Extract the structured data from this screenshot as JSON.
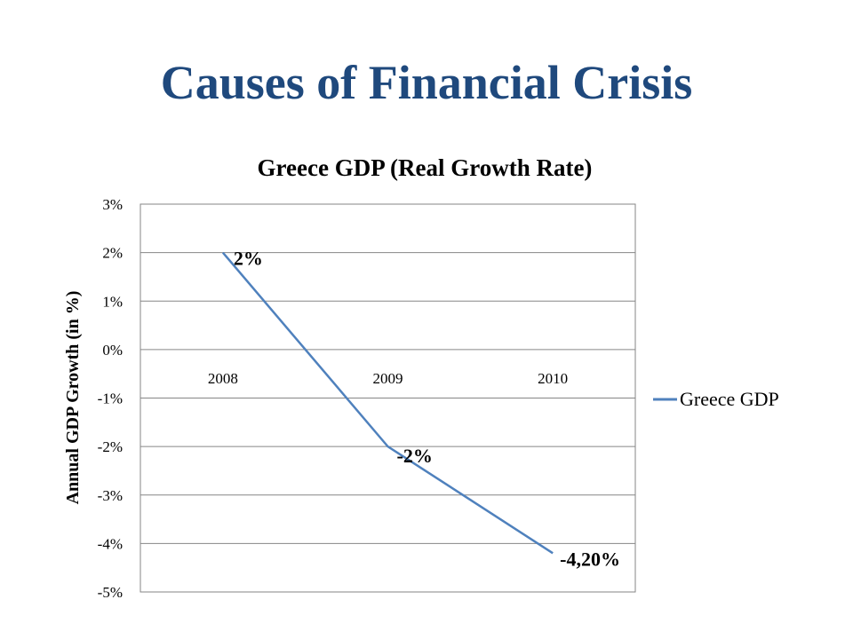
{
  "slide": {
    "title": "Causes of Financial Crisis",
    "title_color": "#1F497D"
  },
  "chart_data": {
    "type": "line",
    "title": "Greece GDP (Real Growth Rate)",
    "xlabel": "",
    "ylabel": "Annual GDP Growth (in %)",
    "categories": [
      "2008",
      "2009",
      "2010"
    ],
    "series": [
      {
        "name": "Greece GDP",
        "values": [
          2,
          -2,
          -4.2
        ],
        "data_labels": [
          "2%",
          "-2%",
          "-4,20%"
        ],
        "color": "#4F81BD"
      }
    ],
    "ylim": [
      -5,
      3
    ],
    "ytick_values": [
      3,
      2,
      1,
      0,
      -1,
      -2,
      -3,
      -4,
      -5
    ],
    "ytick_labels": [
      "3%",
      "2%",
      "1%",
      "0%",
      "-1%",
      "-2%",
      "-3%",
      "-4%",
      "-5%"
    ],
    "grid": true,
    "legend_position": "right"
  }
}
